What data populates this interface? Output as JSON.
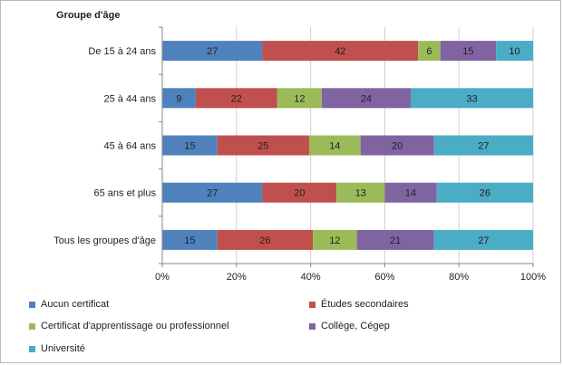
{
  "chart_data": {
    "type": "bar",
    "orientation": "horizontal",
    "stacked": "percent",
    "y_title": "Groupe d'âge",
    "categories": [
      "De 15 à 24 ans",
      "25 à 44 ans",
      "45 à 64 ans",
      "65 ans et plus",
      "Tous les groupes d'âge"
    ],
    "series": [
      {
        "name": "Aucun certificat",
        "color": "#4F81BD",
        "values": [
          27,
          9,
          15,
          27,
          15
        ]
      },
      {
        "name": "Études secondaires",
        "color": "#C0504D",
        "values": [
          42,
          22,
          25,
          20,
          26
        ]
      },
      {
        "name": "Certificat d'apprentissage ou professionnel",
        "color": "#9BBB59",
        "values": [
          6,
          12,
          14,
          13,
          12
        ]
      },
      {
        "name": "Collège, Cégep",
        "color": "#8064A2",
        "values": [
          15,
          24,
          20,
          14,
          21
        ]
      },
      {
        "name": "Université",
        "color": "#4BACC6",
        "values": [
          10,
          33,
          27,
          26,
          27
        ]
      }
    ],
    "x_ticks": [
      "0%",
      "20%",
      "40%",
      "60%",
      "80%",
      "100%"
    ],
    "xlim": [
      0,
      100
    ],
    "grid": true,
    "legend": "bottom"
  }
}
